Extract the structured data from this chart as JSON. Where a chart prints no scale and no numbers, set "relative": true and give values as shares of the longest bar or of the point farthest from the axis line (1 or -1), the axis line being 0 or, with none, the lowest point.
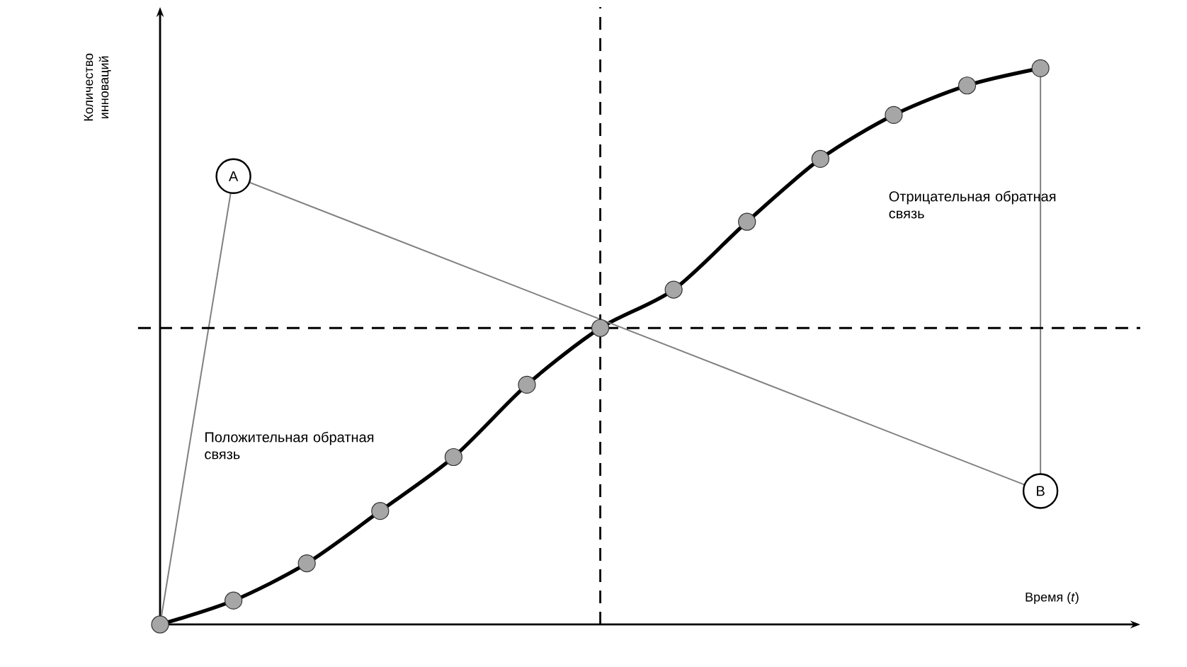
{
  "chart_data": {
    "type": "line",
    "relative": true,
    "xlabel": "Время (*t*)",
    "ylabel": "Количество инноваций",
    "categories": [
      null,
      null,
      null,
      null,
      null,
      null,
      null,
      null,
      null,
      null,
      null,
      null,
      null
    ],
    "series": [
      {
        "color": "#000000",
        "marker": "circle",
        "values": [
          0,
          0.043,
          0.11,
          0.204,
          0.301,
          0.431,
          0.533,
          0.602,
          0.724,
          0.837,
          0.916,
          0.969,
          1
        ]
      },
      {
        "color": "#808080",
        "marker": "none",
        "values": [
          0,
          0.806,
          null,
          null,
          null,
          null,
          null,
          null,
          null,
          null,
          null,
          null,
          0.24
        ]
      }
    ],
    "ref_lines": [
      {
        "axis": "y",
        "value": 0.533,
        "line_style": "dashed",
        "color": "#000000"
      }
    ],
    "annotations": [
      "A",
      "B",
      "Положительная обратная связь",
      "Отрицательная обратная связь"
    ]
  }
}
